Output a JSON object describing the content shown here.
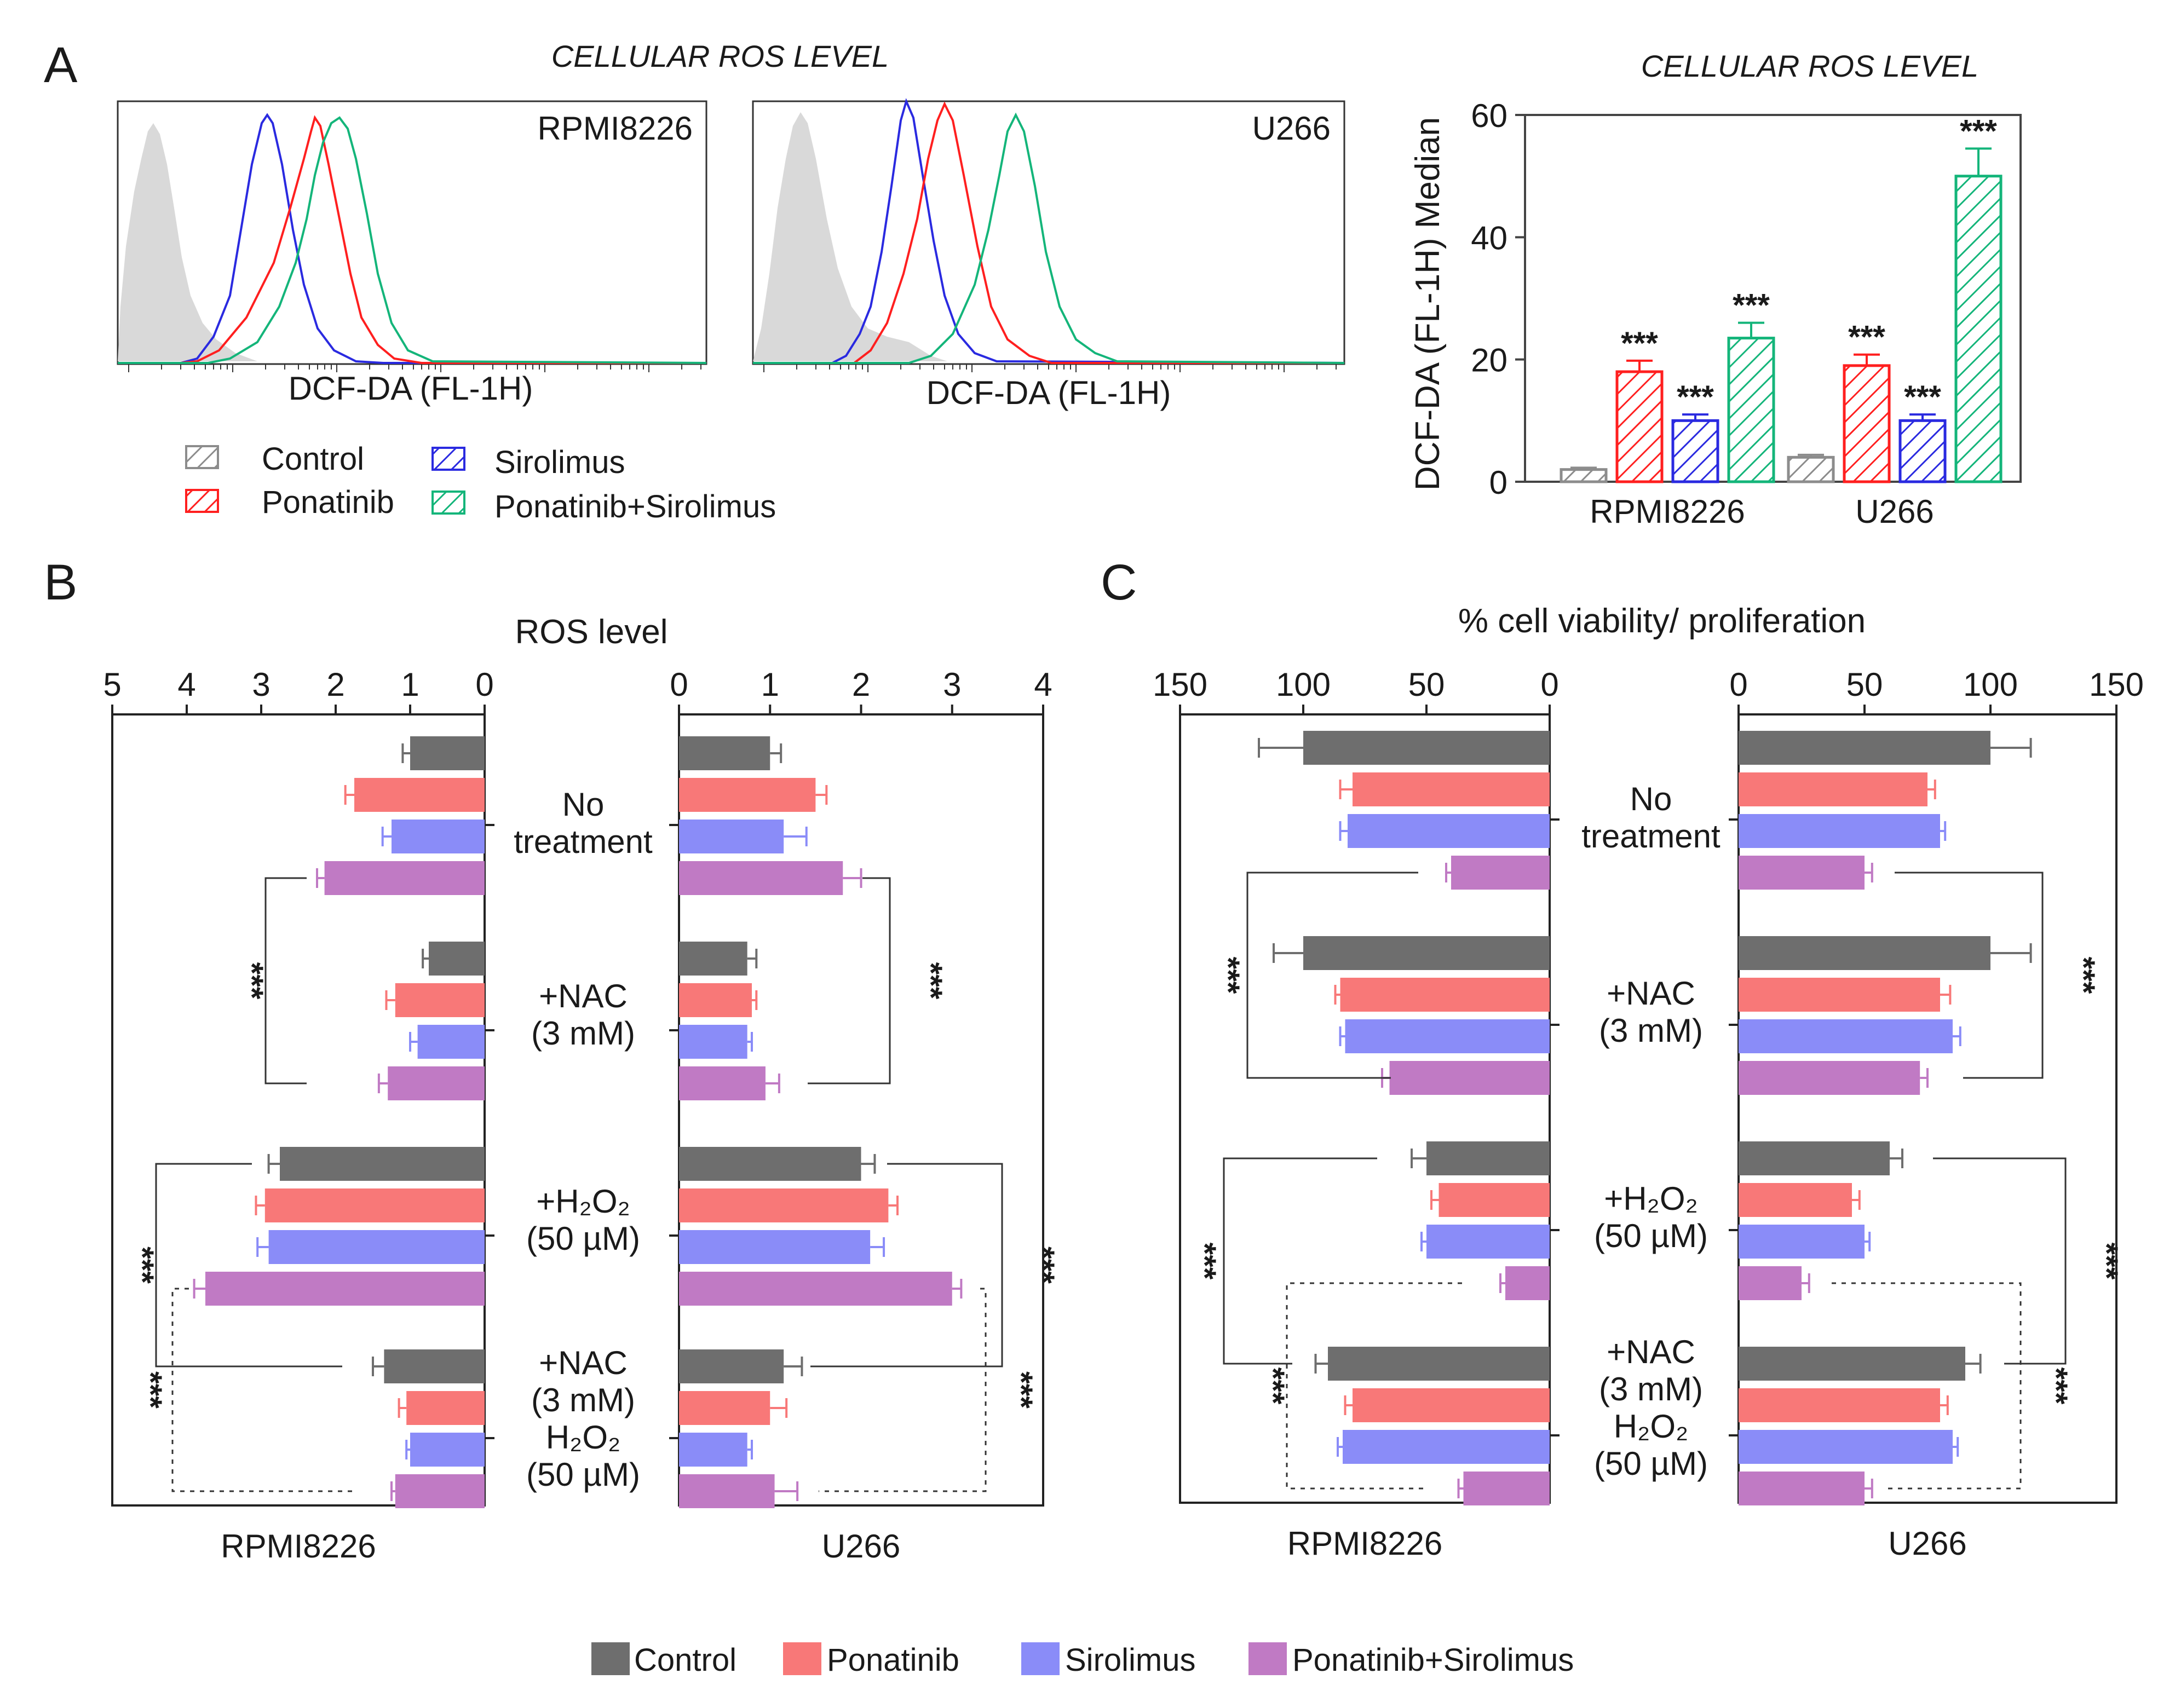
{
  "figure": {
    "panel_letters": [
      "A",
      "B",
      "C"
    ]
  },
  "colors": {
    "control": "#6e6e6e",
    "ponatinib": "#f87878",
    "sirolimus": "#8a8cf8",
    "combo": "#c07ac4",
    "control_hatch": "#8c8c8c",
    "ponatinib_hatch": "#ff1f1f",
    "sirolimus_hatch": "#2a2ae0",
    "combo_hatch": "#14b57a",
    "shade": "#d9d9d9",
    "sig_star": "#111111"
  },
  "panel_a": {
    "title": "CELLULAR ROS LEVEL",
    "histograms": [
      {
        "cell_line": "RPMI8226",
        "xlabel": "DCF-DA (FL-1H)"
      },
      {
        "cell_line": "U266",
        "xlabel": "DCF-DA (FL-1H)"
      }
    ],
    "legend": [
      "Control",
      "Ponatinib",
      "Sirolimus",
      "Ponatinib+Sirolimus"
    ]
  },
  "chart_data": [
    {
      "type": "bar",
      "title": "CELLULAR ROS LEVEL",
      "ylabel": "DCF-DA (FL-1H) Median",
      "xlabel": "",
      "categories": [
        "RPMI8226",
        "U266"
      ],
      "ylim": [
        0,
        60
      ],
      "yticks": [
        "0",
        "20",
        "40",
        "60"
      ],
      "series": [
        {
          "name": "Control",
          "values": [
            2,
            4
          ],
          "errors": [
            0.3,
            0.4
          ],
          "stars": [
            "",
            ""
          ]
        },
        {
          "name": "Ponatinib",
          "values": [
            18,
            19
          ],
          "errors": [
            1.8,
            1.8
          ],
          "stars": [
            "***",
            "***"
          ]
        },
        {
          "name": "Sirolimus",
          "values": [
            10,
            10
          ],
          "errors": [
            1.0,
            1.0
          ],
          "stars": [
            "***",
            "***"
          ]
        },
        {
          "name": "Ponatinib+Sirolimus",
          "values": [
            23.5,
            50
          ],
          "errors": [
            2.5,
            4.5
          ],
          "stars": [
            "***",
            "***"
          ]
        }
      ]
    },
    {
      "type": "bar",
      "orientation": "horizontal",
      "title": "ROS level",
      "panels": [
        {
          "cell_line": "RPMI8226",
          "xlim": [
            0,
            5
          ],
          "reversed": true,
          "xticks": [
            "5",
            "4",
            "3",
            "2",
            "1",
            "0"
          ],
          "groups": [
            {
              "values": [
                1.0,
                1.75,
                1.25,
                2.15
              ],
              "errors": [
                0.1,
                0.12,
                0.12,
                0.1
              ]
            },
            {
              "values": [
                0.75,
                1.2,
                0.9,
                1.3
              ],
              "errors": [
                0.08,
                0.12,
                0.1,
                0.12
              ]
            },
            {
              "values": [
                2.75,
                2.95,
                2.9,
                3.75
              ],
              "errors": [
                0.15,
                0.12,
                0.15,
                0.15
              ]
            },
            {
              "values": [
                1.35,
                1.05,
                1.0,
                1.2
              ],
              "errors": [
                0.15,
                0.1,
                0.05,
                0.05
              ]
            }
          ],
          "significance": [
            "***",
            "***",
            "***"
          ]
        },
        {
          "cell_line": "U266",
          "xlim": [
            0,
            4
          ],
          "reversed": false,
          "xticks": [
            "0",
            "1",
            "2",
            "3",
            "4"
          ],
          "groups": [
            {
              "values": [
                1.0,
                1.5,
                1.15,
                1.8
              ],
              "errors": [
                0.12,
                0.12,
                0.25,
                0.2
              ]
            },
            {
              "values": [
                0.75,
                0.8,
                0.75,
                0.95
              ],
              "errors": [
                0.1,
                0.05,
                0.05,
                0.15
              ]
            },
            {
              "values": [
                2.0,
                2.3,
                2.1,
                3.0
              ],
              "errors": [
                0.15,
                0.1,
                0.15,
                0.1
              ]
            },
            {
              "values": [
                1.15,
                1.0,
                0.75,
                1.05
              ],
              "errors": [
                0.2,
                0.18,
                0.05,
                0.25
              ]
            }
          ],
          "significance": [
            "***",
            "***",
            "***"
          ]
        }
      ],
      "group_labels": [
        [
          "No",
          "treatment"
        ],
        [
          "+NAC",
          "(3 mM)"
        ],
        [
          "+H₂O₂",
          "(50 µM)"
        ],
        [
          "+NAC",
          "(3 mM)",
          "H₂O₂",
          "(50 µM)"
        ]
      ]
    },
    {
      "type": "bar",
      "orientation": "horizontal",
      "title": "% cell viability/ proliferation",
      "panels": [
        {
          "cell_line": "RPMI8226",
          "xlim": [
            0,
            150
          ],
          "reversed": true,
          "xticks": [
            "150",
            "100",
            "50",
            "0"
          ],
          "groups": [
            {
              "values": [
                100,
                80,
                82,
                40
              ],
              "errors": [
                18,
                5,
                3,
                2
              ]
            },
            {
              "values": [
                100,
                85,
                83,
                65
              ],
              "errors": [
                12,
                2,
                2,
                3
              ]
            },
            {
              "values": [
                50,
                45,
                50,
                18
              ],
              "errors": [
                6,
                3,
                2,
                2
              ]
            },
            {
              "values": [
                90,
                80,
                84,
                35
              ],
              "errors": [
                5,
                3,
                2,
                2
              ]
            }
          ],
          "significance": [
            "***",
            "***",
            "***"
          ]
        },
        {
          "cell_line": "U266",
          "xlim": [
            0,
            150
          ],
          "reversed": false,
          "xticks": [
            "0",
            "50",
            "100",
            "150"
          ],
          "groups": [
            {
              "values": [
                100,
                75,
                80,
                50
              ],
              "errors": [
                16,
                3,
                2,
                3
              ]
            },
            {
              "values": [
                100,
                80,
                85,
                72
              ],
              "errors": [
                16,
                4,
                3,
                3
              ]
            },
            {
              "values": [
                60,
                45,
                50,
                25
              ],
              "errors": [
                5,
                3,
                2,
                3
              ]
            },
            {
              "values": [
                90,
                80,
                85,
                50
              ],
              "errors": [
                6,
                3,
                2,
                3
              ]
            }
          ],
          "significance": [
            "***",
            "***",
            "***"
          ]
        }
      ],
      "group_labels": [
        [
          "No",
          "treatment"
        ],
        [
          "+NAC",
          "(3 mM)"
        ],
        [
          "+H₂O₂",
          "(50 µM)"
        ],
        [
          "+NAC",
          "(3 mM)",
          "H₂O₂",
          "(50 µM)"
        ]
      ]
    }
  ],
  "bottom_legend": [
    "Control",
    "Ponatinib",
    "Sirolimus",
    "Ponatinib+Sirolimus"
  ]
}
